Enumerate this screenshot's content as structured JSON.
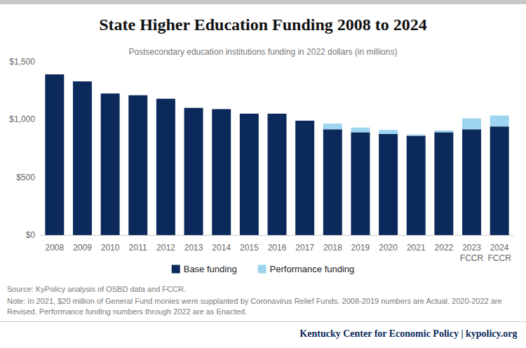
{
  "chart_data": {
    "type": "bar",
    "title": "State Higher Education Funding 2008 to 2024",
    "subtitle": "Postsecondary education institutions funding in 2022 dollars (in millions)",
    "categories": [
      "2008",
      "2009",
      "2010",
      "2011",
      "2012",
      "2013",
      "2014",
      "2015",
      "2016",
      "2017",
      "2018",
      "2019",
      "2020",
      "2021",
      "2022",
      "2023\nFCCR",
      "2024\nFCCR"
    ],
    "series": [
      {
        "name": "Base funding",
        "color": "#0b2a5b",
        "values": [
          1390,
          1330,
          1225,
          1210,
          1180,
          1100,
          1090,
          1050,
          1050,
          990,
          915,
          890,
          875,
          860,
          890,
          915,
          940
        ]
      },
      {
        "name": "Performance funding",
        "color": "#9fd4f1",
        "values": [
          null,
          null,
          null,
          null,
          null,
          null,
          null,
          null,
          null,
          null,
          50,
          40,
          35,
          10,
          15,
          95,
          95
        ]
      }
    ],
    "stacked": true,
    "ylim": [
      0,
      1500
    ],
    "yticks": [
      {
        "value": 0,
        "label": "$0"
      },
      {
        "value": 500,
        "label": "$500"
      },
      {
        "value": 1000,
        "label": "$1,000"
      },
      {
        "value": 1500,
        "label": "$1,500"
      }
    ],
    "grid": false,
    "legend": "bottom",
    "notes": [
      "Source: KyPolicy analysis of OSBD data and FCCR.",
      "Note: In 2021, $20 million of General Fund monies were supplanted by Coronavirus Relief Funds. 2008-2019 numbers are Actual. 2020-2022 are Revised. Performance funding numbers through 2022 are as Enacted."
    ],
    "credit": "Kentucky Center for Economic Policy | kypolicy.org"
  }
}
